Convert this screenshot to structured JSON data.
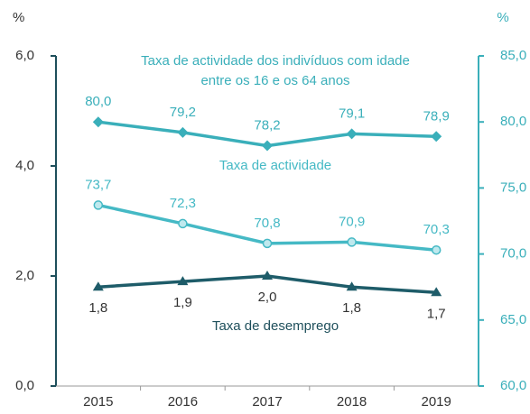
{
  "chart_data": {
    "type": "line",
    "ylabel": "%",
    "y2label": "%",
    "categories": [
      "2015",
      "2016",
      "2017",
      "2018",
      "2019"
    ],
    "ylim": [
      0,
      6
    ],
    "yticks": [
      {
        "value": 0,
        "label": "0,0"
      },
      {
        "value": 2,
        "label": "2,0"
      },
      {
        "value": 4,
        "label": "4,0"
      },
      {
        "value": 6,
        "label": "6,0"
      }
    ],
    "y2lim": [
      60,
      85
    ],
    "y2ticks": [
      {
        "value": 60,
        "label": "60,0"
      },
      {
        "value": 65,
        "label": "65,0"
      },
      {
        "value": 70,
        "label": "70,0"
      },
      {
        "value": 75,
        "label": "75,0"
      },
      {
        "value": 80,
        "label": "80,0"
      },
      {
        "value": 85,
        "label": "85,0"
      }
    ],
    "series": [
      {
        "name": "Taxa de actividade dos indivíduos com idade entre os 16 e os 64 anos",
        "axis": "y2",
        "color": "#3aafba",
        "marker": "diamond",
        "values": [
          80.0,
          79.2,
          78.2,
          79.1,
          78.9
        ],
        "value_labels": [
          "80,0",
          "79,2",
          "78,2",
          "79,1",
          "78,9"
        ]
      },
      {
        "name": "Taxa de actividade",
        "axis": "y2",
        "color": "#45b9c5",
        "marker": "circle",
        "values": [
          73.7,
          72.3,
          70.8,
          70.9,
          70.3
        ],
        "value_labels": [
          "73,7",
          "72,3",
          "70,8",
          "70,9",
          "70,3"
        ]
      },
      {
        "name": "Taxa de desemprego",
        "axis": "y",
        "color": "#1e5c69",
        "marker": "triangle",
        "values": [
          1.8,
          1.9,
          2.0,
          1.8,
          1.7
        ],
        "value_labels": [
          "1,8",
          "1,9",
          "2,0",
          "1,8",
          "1,7"
        ]
      }
    ]
  }
}
